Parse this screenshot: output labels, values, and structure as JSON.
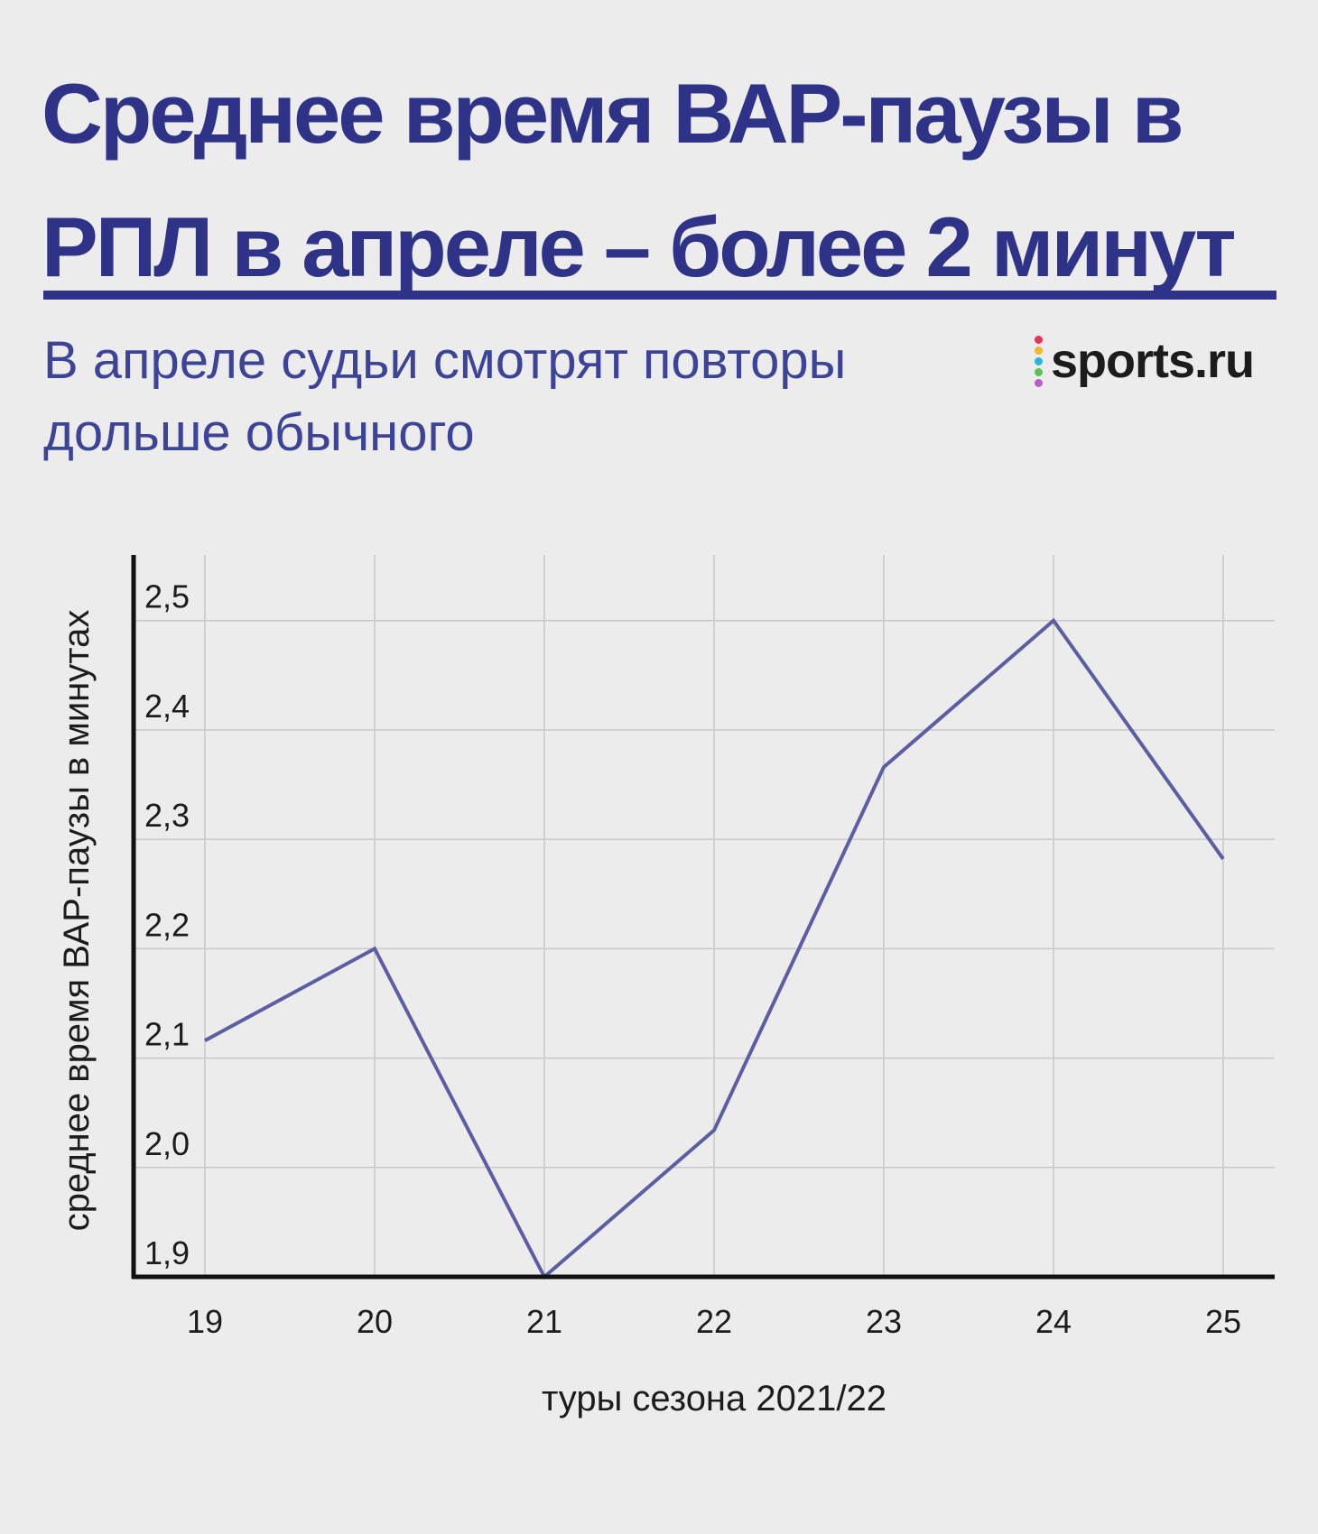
{
  "header": {
    "title": "Среднее время ВАР-паузы в РПЛ в апреле – более 2 минут",
    "subtitle": "В апреле судьи смотрят повторы дольше обычного",
    "logo_text": "sports.ru",
    "logo_dot_colors": [
      "#e8335a",
      "#f2b52b",
      "#29b5d6",
      "#5bbf5a",
      "#b95ec7"
    ]
  },
  "colors": {
    "title": "#2e3388",
    "line": "#5b5ea3",
    "grid": "#c8c8c8",
    "axis": "#111111"
  },
  "chart_data": {
    "type": "line",
    "title": "",
    "xlabel": "туры сезона 2021/22",
    "ylabel": "среднее время ВАР-паузы в минутах",
    "x": [
      19,
      20,
      21,
      22,
      23,
      24,
      25
    ],
    "x_tick_labels": [
      "19",
      "20",
      "21",
      "22",
      "23",
      "24",
      "25"
    ],
    "y_tick_labels": [
      "1,9",
      "2,0",
      "2,1",
      "2,2",
      "2,3",
      "2,4",
      "2,5"
    ],
    "y_ticks": [
      1.9,
      2.0,
      2.1,
      2.2,
      2.3,
      2.4,
      2.5
    ],
    "ylim": [
      1.9,
      2.56
    ],
    "series": [
      {
        "values": [
          2.116,
          2.2,
          1.9,
          2.034,
          2.366,
          2.5,
          2.282
        ]
      }
    ],
    "grid": true,
    "legend": "none"
  }
}
